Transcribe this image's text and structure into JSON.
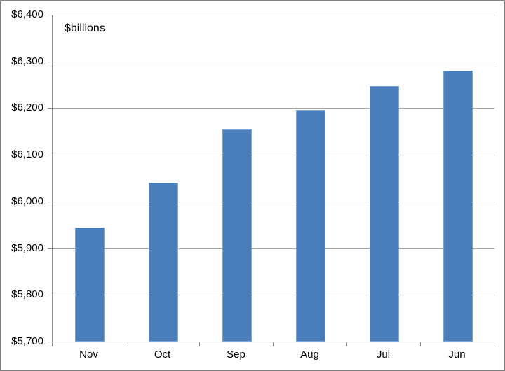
{
  "chart_data": {
    "type": "bar",
    "title": "",
    "annotation": "$billions",
    "categories": [
      "Nov",
      "Oct",
      "Sep",
      "Aug",
      "Jul",
      "Jun"
    ],
    "values": [
      5945,
      6040,
      6155,
      6196,
      6247,
      6280
    ],
    "xlabel": "",
    "ylabel": "",
    "ylim": [
      5700,
      6400
    ],
    "y_tick_step": 100,
    "y_tick_labels": [
      "$5,700",
      "$5,800",
      "$5,900",
      "$6,000",
      "$6,100",
      "$6,200",
      "$6,300",
      "$6,400"
    ],
    "grid": true,
    "legend": "none",
    "colors": {
      "bar_fill": "#4a7ebb",
      "bar_edge": "#7fa5d6",
      "gridline": "#a6a6a6",
      "axis_line": "#898989",
      "text": "#000000",
      "background": "#ffffff",
      "outer_border": "#7f7f7f"
    }
  }
}
